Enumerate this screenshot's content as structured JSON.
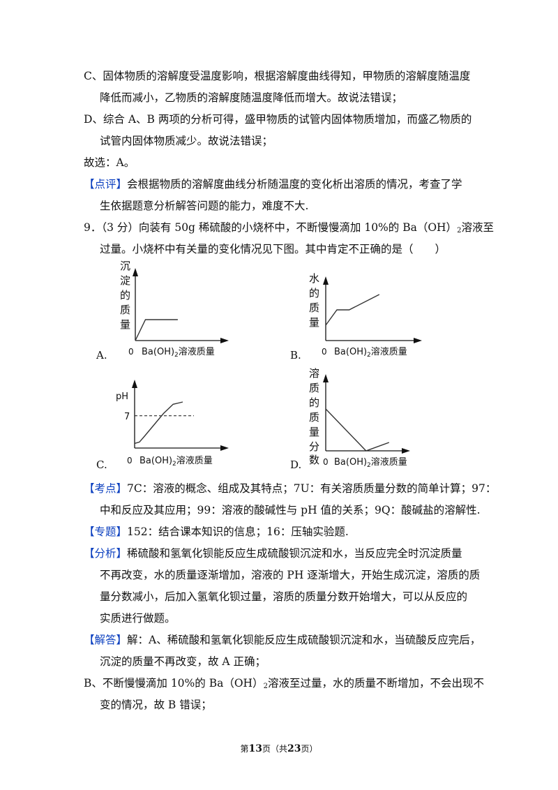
{
  "para_c": {
    "l1": "C、固体物质的溶解度受温度影响，根据溶解度曲线得知，甲物质的溶解度随温度",
    "l2": "降低而减小，乙物质的溶解度随温度降低而增大。故说法错误；"
  },
  "para_d": {
    "l1": "D、综合 A、B 两项的分析可得，盛甲物质的试管内固体物质增加，而盛乙物质的",
    "l2": "试管内固体物质减少。故说法错误；"
  },
  "answer_prev": "故选：A。",
  "review": {
    "tag": "【点评】",
    "l1": "会根据物质的溶解度曲线分析随温度的变化析出溶质的情况，考查了学",
    "l2": "生依据题意分析解答问题的能力，难度不大."
  },
  "question": {
    "l1_pre": "9．（3 分）向装有 50g 稀硫酸的小烧杯中，不断慢慢滴加 10%的 Ba（OH）",
    "l1_sub": "2",
    "l1_post": "溶液至",
    "l2": "过量。小烧杯中有关量的变化情况见下图。其中肯定不正确的是（　　）"
  },
  "chart_data": [
    {
      "type": "line",
      "option": "A.",
      "ylabel": "沉淀的质量",
      "xlabel_pre": "Ba(OH)",
      "xlabel_sub": "2",
      "xlabel_post": "溶液质量",
      "origin": "0",
      "x": [
        0,
        1,
        4.2
      ],
      "y": [
        0,
        1,
        1
      ]
    },
    {
      "type": "line",
      "option": "B.",
      "ylabel": "水的质量",
      "xlabel_pre": "Ba(OH)",
      "xlabel_sub": "2",
      "xlabel_post": "溶液质量",
      "origin": "0",
      "x": [
        0,
        1,
        2.1,
        4.8
      ],
      "y": [
        1,
        2,
        2,
        3
      ]
    },
    {
      "type": "line",
      "option": "C.",
      "ylabel": "pH",
      "xlabel_pre": "Ba(OH)",
      "xlabel_sub": "2",
      "xlabel_post": "溶液质量",
      "origin": "0",
      "ref_line_label": "7",
      "ref_line_y": 7,
      "x": [
        0,
        0.5,
        1,
        2,
        3,
        4,
        5
      ],
      "y": [
        1,
        1.3,
        2.5,
        5,
        7.5,
        9.5,
        10
      ]
    },
    {
      "type": "line",
      "option": "D.",
      "ylabel": "溶质的质量分数",
      "xlabel_pre": "Ba(OH)",
      "xlabel_sub": "2",
      "xlabel_post": "溶液质量",
      "origin": "0",
      "x": [
        0,
        3.5,
        5.5
      ],
      "y": [
        5,
        0,
        1
      ]
    }
  ],
  "kaodian": {
    "tag": "【考点】",
    "l1": "7C：溶液的概念、组成及其特点；7U：有关溶质质量分数的简单计算；97：",
    "l2": "中和反应及其应用；99：溶液的酸碱性与 pH 值的关系；9Q：酸碱盐的溶解性."
  },
  "zhuanti": {
    "tag": "【专题】",
    "text": "152：结合课本知识的信息；16：压轴实验题."
  },
  "fenxi": {
    "tag": "【分析】",
    "l1": "稀硫酸和氢氧化钡能反应生成硫酸钡沉淀和水，当反应完全时沉淀质量",
    "l2": "不再改变，水的质量逐渐增加，溶液的 PH 逐渐增大，开始生成沉淀，溶质的质",
    "l3": "量分数减小，后加入氢氧化钡过量，溶质的质量分数开始增大，可以从反应的",
    "l4": "实质进行做题。"
  },
  "jieda": {
    "tag": "【解答】",
    "l1": "解：A、稀硫酸和氢氧化钡能反应生成硫酸钡沉淀和水，当硫酸反应完后，",
    "l2": "沉淀的质量不再改变，故 A 正确；",
    "b1_pre": "B、不断慢慢滴加 10%的 Ba（OH）",
    "b1_sub": "2",
    "b1_post": "溶液至过量，水的质量不断增加，不会出现不",
    "b2": "变的情况，故 B 错误；"
  },
  "footer": {
    "pre": "第",
    "page": "13",
    "mid": "页（共",
    "total": "23",
    "post": "页）"
  }
}
